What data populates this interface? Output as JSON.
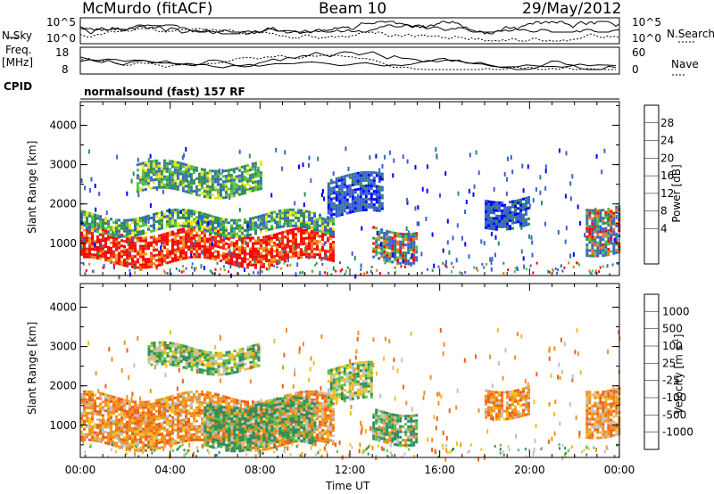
{
  "header": {
    "station": "McMurdo (fitACF)",
    "beam": "Beam 10",
    "date": "29/May/2012"
  },
  "status_panels": {
    "nsky_label": "N.Sky",
    "nsearch_label": "N.Search",
    "noise_ticks_left": [
      "10^5",
      "10^0"
    ],
    "noise_ticks_right": [
      "10^5",
      "10^0"
    ],
    "freq_label_1": "Freq.",
    "freq_label_2": "[MHz]",
    "freq_ticks": [
      "18",
      "8"
    ],
    "nave_label": "Nave",
    "nave_ticks": [
      "60",
      "0"
    ],
    "cpid_label": "CPID",
    "cpid_value": "normalsound (fast) 157 RF"
  },
  "chart_data": [
    {
      "type": "heatmap",
      "name": "power",
      "ylabel": "Slant Range [km]",
      "xlabel": "Time UT",
      "x_ticks": [
        "00:00",
        "04:00",
        "08:00",
        "12:00",
        "16:00",
        "20:00",
        "00:00"
      ],
      "y_ticks": [
        "1000",
        "2000",
        "3000",
        "4000"
      ],
      "ylim": [
        180,
        4600
      ],
      "colorbar_label": "Power [dB]",
      "colorbar_ticks": [
        "28",
        "24",
        "20",
        "16",
        "12",
        "8",
        "4"
      ],
      "colorbar_colors": [
        "#0000ff",
        "#3a62c8",
        "#2f8c5c",
        "#56c040",
        "#f2e01e",
        "#f0a020",
        "#f07818",
        "#e83018",
        "#ff0000"
      ],
      "regions": [
        {
          "t0": 0.0,
          "t1": 11.3,
          "r0": 500,
          "r1": 1300,
          "level": "high"
        },
        {
          "t0": 0.0,
          "t1": 11.3,
          "r0": 1300,
          "r1": 1750,
          "level": "mid"
        },
        {
          "t0": 2.5,
          "t1": 8.0,
          "r0": 2300,
          "r1": 3000,
          "level": "mid"
        },
        {
          "t0": 11.0,
          "t1": 13.5,
          "r0": 1700,
          "r1": 2700,
          "level": "low"
        },
        {
          "t0": 13.0,
          "t1": 15.0,
          "r0": 600,
          "r1": 1400,
          "level": "mixed"
        },
        {
          "t0": 18.0,
          "t1": 20.0,
          "r0": 1500,
          "r1": 2200,
          "level": "low"
        },
        {
          "t0": 22.5,
          "t1": 24.0,
          "r0": 800,
          "r1": 2000,
          "level": "mixed"
        }
      ]
    },
    {
      "type": "heatmap",
      "name": "velocity",
      "ylabel": "Slant Range [km]",
      "xlabel": "Time UT",
      "x_ticks": [
        "00:00",
        "04:00",
        "08:00",
        "12:00",
        "16:00",
        "20:00",
        "00:00"
      ],
      "y_ticks": [
        "1000",
        "2000",
        "3000",
        "4000"
      ],
      "ylim": [
        180,
        4600
      ],
      "colorbar_label": "Velocity [m s",
      "colorbar_label_sup": "-1",
      "colorbar_label_end": "]",
      "colorbar_ticks": [
        "1000",
        "500",
        "100",
        "25",
        "-25",
        "-100",
        "-500",
        "-1000"
      ],
      "colorbar_colors": [
        "#2040c0",
        "#2a6cb0",
        "#2f8c5c",
        "#56c040",
        "#c0c0c0",
        "#f0c020",
        "#f09020",
        "#f06018",
        "#ff0000"
      ],
      "regions": [
        {
          "t0": 0.0,
          "t1": 11.3,
          "r0": 500,
          "r1": 1750,
          "level": "orange"
        },
        {
          "t0": 5.5,
          "t1": 10.5,
          "r0": 500,
          "r1": 1600,
          "level": "green"
        },
        {
          "t0": 3.0,
          "t1": 8.0,
          "r0": 2400,
          "r1": 3000,
          "level": "mixed"
        },
        {
          "t0": 11.0,
          "t1": 13.0,
          "r0": 1600,
          "r1": 2500,
          "level": "mixed"
        },
        {
          "t0": 13.0,
          "t1": 15.0,
          "r0": 600,
          "r1": 1400,
          "level": "green"
        },
        {
          "t0": 18.0,
          "t1": 20.0,
          "r0": 1300,
          "r1": 2000,
          "level": "orange"
        },
        {
          "t0": 22.5,
          "t1": 24.0,
          "r0": 800,
          "r1": 2000,
          "level": "orange"
        }
      ]
    }
  ]
}
